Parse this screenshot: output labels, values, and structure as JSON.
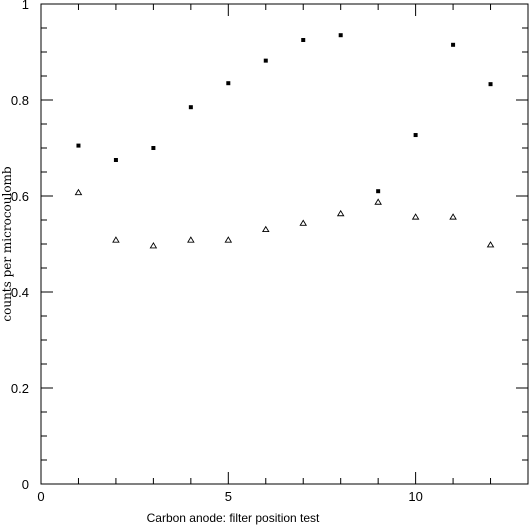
{
  "chart_data": {
    "type": "scatter",
    "xlabel": "Carbon anode: filter position test",
    "ylabel": "counts per microcoulomb",
    "xlim": [
      0,
      13
    ],
    "ylim": [
      0,
      1
    ],
    "x_ticks": [
      0,
      5,
      10
    ],
    "y_ticks": [
      0,
      0.2,
      0.4,
      0.6,
      0.8,
      1
    ],
    "x_tick_labels": [
      "0",
      "5",
      "10"
    ],
    "y_tick_labels": [
      "0",
      "0.2",
      "0.4",
      "0.6",
      "0.8",
      "1"
    ],
    "grid": false,
    "series": [
      {
        "marker": "square",
        "x": [
          1,
          2,
          3,
          4,
          5,
          6,
          7,
          8,
          9,
          10,
          11,
          12
        ],
        "y": [
          0.705,
          0.675,
          0.7,
          0.785,
          0.835,
          0.882,
          0.925,
          0.935,
          0.61,
          0.727,
          0.915,
          0.833
        ]
      },
      {
        "marker": "triangle",
        "x": [
          1,
          2,
          3,
          4,
          5,
          6,
          7,
          8,
          9,
          10,
          11,
          12
        ],
        "y": [
          0.607,
          0.508,
          0.496,
          0.508,
          0.508,
          0.53,
          0.543,
          0.563,
          0.587,
          0.556,
          0.556,
          0.498
        ]
      }
    ]
  }
}
